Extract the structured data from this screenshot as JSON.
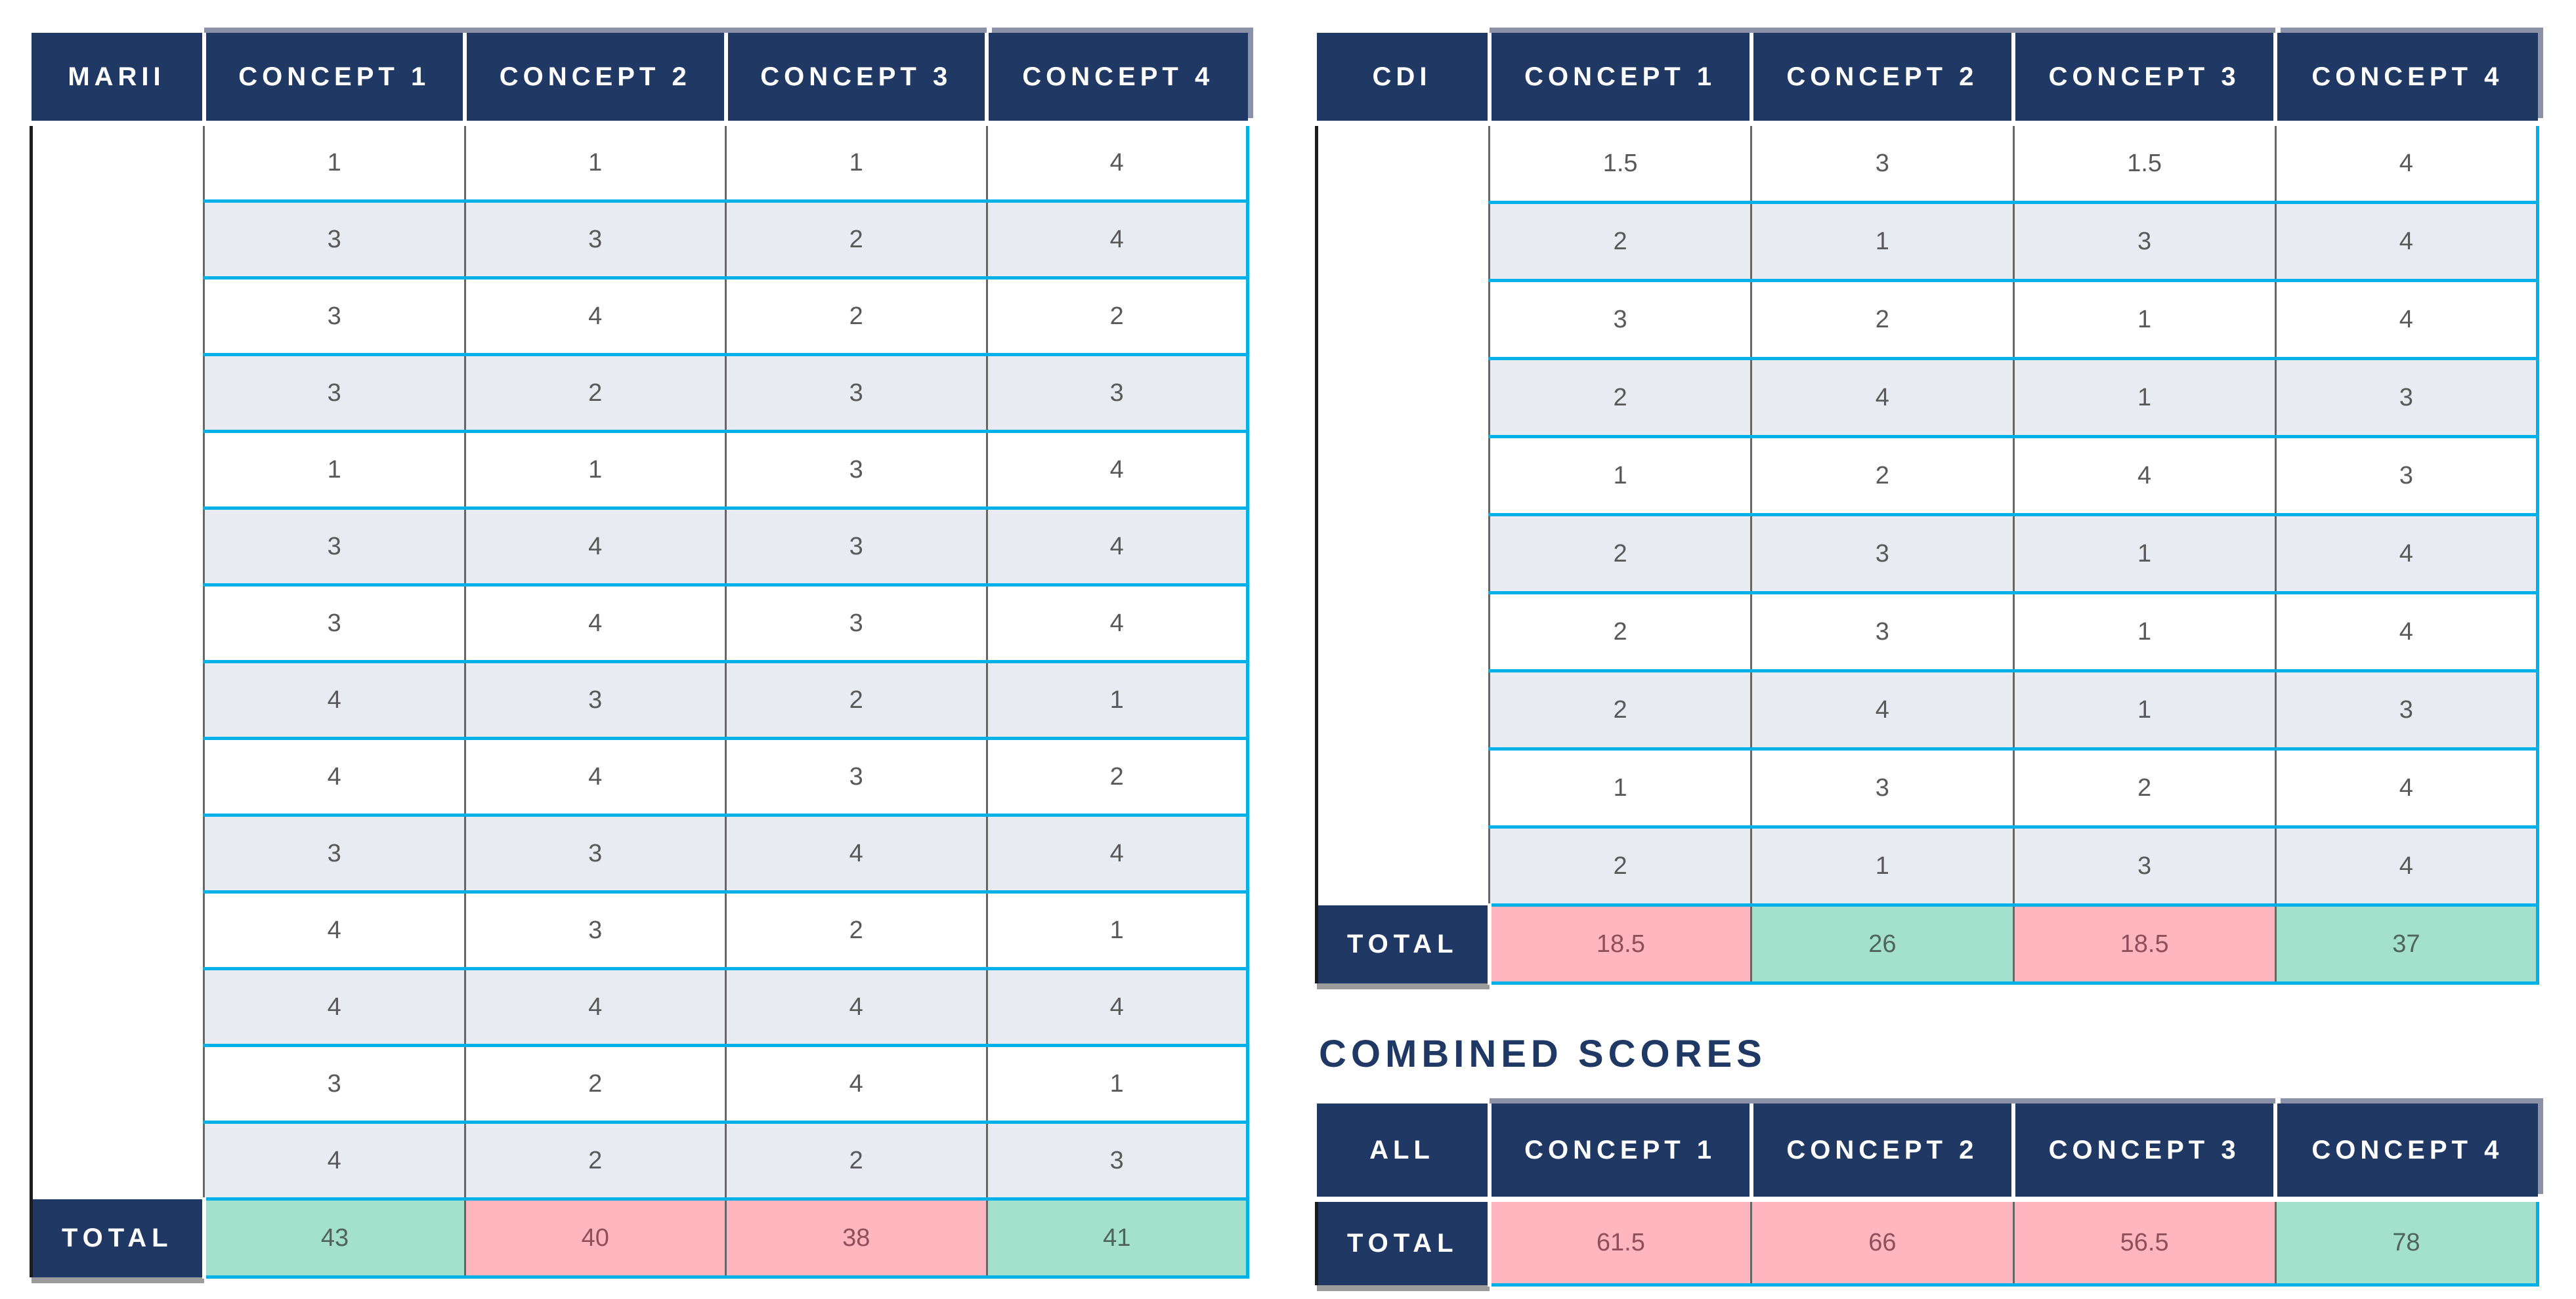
{
  "colors": {
    "header_navy": "#1f3864",
    "row_divider_cyan": "#00b0e8",
    "column_divider_gray": "#666666",
    "stripe_gray": "#e8ebf2",
    "winner_green": "#a3e1cd",
    "loser_pink": "#ffb6be",
    "number_gray": "#595959"
  },
  "marii_table": {
    "label": "MARII",
    "columns": [
      "CONCEPT 1",
      "CONCEPT 2",
      "CONCEPT 3",
      "CONCEPT 4"
    ],
    "rows": [
      [
        1,
        1,
        1,
        4
      ],
      [
        3,
        3,
        2,
        4
      ],
      [
        3,
        4,
        2,
        2
      ],
      [
        3,
        2,
        3,
        3
      ],
      [
        1,
        1,
        3,
        4
      ],
      [
        3,
        4,
        3,
        4
      ],
      [
        3,
        4,
        3,
        4
      ],
      [
        4,
        3,
        2,
        1
      ],
      [
        4,
        4,
        3,
        2
      ],
      [
        3,
        3,
        4,
        4
      ],
      [
        4,
        3,
        2,
        1
      ],
      [
        4,
        4,
        4,
        4
      ],
      [
        3,
        2,
        4,
        1
      ],
      [
        4,
        2,
        2,
        3
      ]
    ],
    "total_label": "TOTAL",
    "totals": [
      {
        "value": 43,
        "cls": "cell total-cell t0 win"
      },
      {
        "value": 40,
        "cls": "cell total-cell lose"
      },
      {
        "value": 38,
        "cls": "cell total-cell lose"
      },
      {
        "value": 41,
        "cls": "cell total-cell last win"
      }
    ]
  },
  "cdi_table": {
    "label": "CDI",
    "columns": [
      "CONCEPT 1",
      "CONCEPT 2",
      "CONCEPT 3",
      "CONCEPT 4"
    ],
    "rows": [
      [
        1.5,
        3,
        1.5,
        4
      ],
      [
        2,
        1,
        3,
        4
      ],
      [
        3,
        2,
        1,
        4
      ],
      [
        2,
        4,
        1,
        3
      ],
      [
        1,
        2,
        4,
        3
      ],
      [
        2,
        3,
        1,
        4
      ],
      [
        2,
        3,
        1,
        4
      ],
      [
        2,
        4,
        1,
        3
      ],
      [
        1,
        3,
        2,
        4
      ],
      [
        2,
        1,
        3,
        4
      ]
    ],
    "total_label": "TOTAL",
    "totals": [
      {
        "value": 18.5,
        "cls": "cell total-cell t0 lose"
      },
      {
        "value": 26,
        "cls": "cell total-cell win"
      },
      {
        "value": 18.5,
        "cls": "cell total-cell lose"
      },
      {
        "value": 37,
        "cls": "cell total-cell last win"
      }
    ]
  },
  "combined": {
    "title": "COMBINED SCORES",
    "label": "ALL",
    "columns": [
      "CONCEPT 1",
      "CONCEPT 2",
      "CONCEPT 3",
      "CONCEPT 4"
    ],
    "total_label": "TOTAL",
    "totals": [
      {
        "value": 61.5,
        "cls": "cell total-cell t0 lose"
      },
      {
        "value": 66,
        "cls": "cell total-cell lose"
      },
      {
        "value": 56.5,
        "cls": "cell total-cell lose"
      },
      {
        "value": 78,
        "cls": "cell total-cell last win"
      }
    ]
  }
}
